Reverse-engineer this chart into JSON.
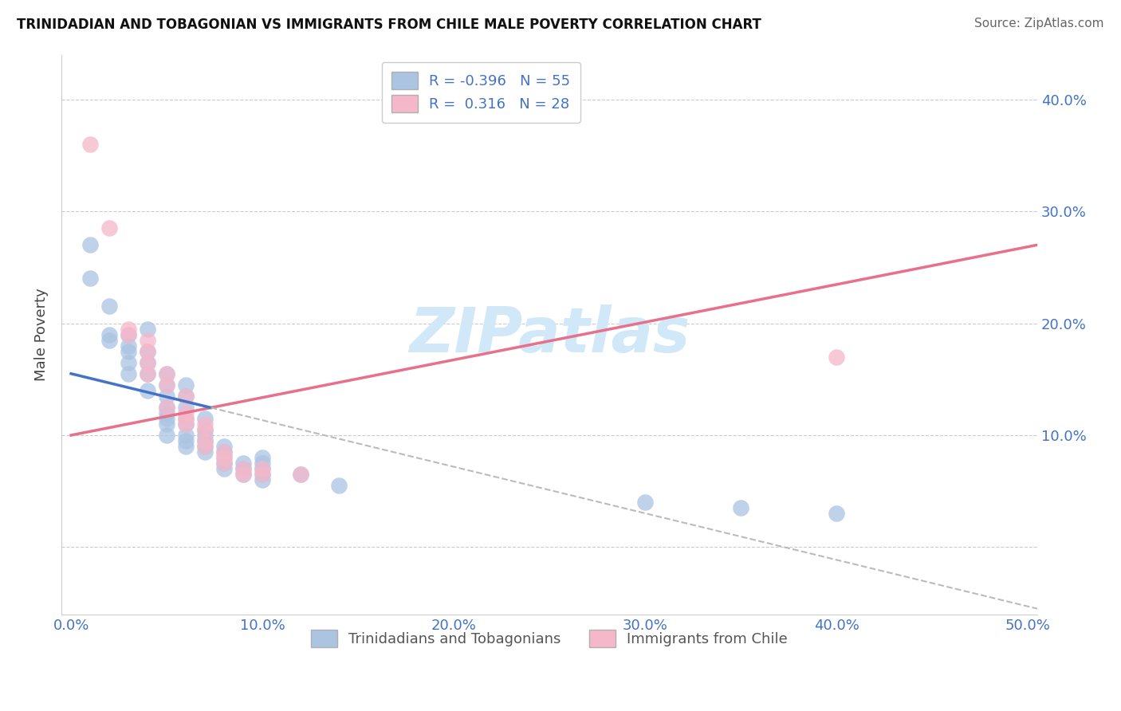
{
  "title": "TRINIDADIAN AND TOBAGONIAN VS IMMIGRANTS FROM CHILE MALE POVERTY CORRELATION CHART",
  "source": "Source: ZipAtlas.com",
  "ylabel": "Male Poverty",
  "xlim": [
    -0.005,
    0.505
  ],
  "ylim": [
    -0.06,
    0.44
  ],
  "xticks": [
    0.0,
    0.1,
    0.2,
    0.3,
    0.4,
    0.5
  ],
  "yticks": [
    0.0,
    0.1,
    0.2,
    0.3,
    0.4
  ],
  "ytick_labels_right": [
    "",
    "10.0%",
    "20.0%",
    "30.0%",
    "40.0%"
  ],
  "xtick_labels": [
    "0.0%",
    "10.0%",
    "20.0%",
    "30.0%",
    "40.0%",
    "50.0%"
  ],
  "r_blue": -0.396,
  "n_blue": 55,
  "r_pink": 0.316,
  "n_pink": 28,
  "legend_label_blue": "Trinidadians and Tobagonians",
  "legend_label_pink": "Immigrants from Chile",
  "blue_color": "#aac4e2",
  "pink_color": "#f5b8ca",
  "blue_line_color": "#4472c4",
  "pink_line_color": "#e8708a",
  "blue_scatter": [
    [
      0.01,
      0.27
    ],
    [
      0.01,
      0.24
    ],
    [
      0.02,
      0.215
    ],
    [
      0.02,
      0.19
    ],
    [
      0.02,
      0.185
    ],
    [
      0.03,
      0.19
    ],
    [
      0.03,
      0.18
    ],
    [
      0.03,
      0.175
    ],
    [
      0.03,
      0.165
    ],
    [
      0.03,
      0.155
    ],
    [
      0.04,
      0.195
    ],
    [
      0.04,
      0.175
    ],
    [
      0.04,
      0.165
    ],
    [
      0.04,
      0.155
    ],
    [
      0.04,
      0.14
    ],
    [
      0.05,
      0.155
    ],
    [
      0.05,
      0.145
    ],
    [
      0.05,
      0.135
    ],
    [
      0.05,
      0.125
    ],
    [
      0.05,
      0.12
    ],
    [
      0.05,
      0.115
    ],
    [
      0.05,
      0.11
    ],
    [
      0.05,
      0.1
    ],
    [
      0.06,
      0.145
    ],
    [
      0.06,
      0.135
    ],
    [
      0.06,
      0.125
    ],
    [
      0.06,
      0.115
    ],
    [
      0.06,
      0.11
    ],
    [
      0.06,
      0.1
    ],
    [
      0.06,
      0.095
    ],
    [
      0.06,
      0.09
    ],
    [
      0.07,
      0.115
    ],
    [
      0.07,
      0.105
    ],
    [
      0.07,
      0.1
    ],
    [
      0.07,
      0.095
    ],
    [
      0.07,
      0.09
    ],
    [
      0.07,
      0.085
    ],
    [
      0.08,
      0.09
    ],
    [
      0.08,
      0.085
    ],
    [
      0.08,
      0.08
    ],
    [
      0.08,
      0.075
    ],
    [
      0.08,
      0.07
    ],
    [
      0.09,
      0.075
    ],
    [
      0.09,
      0.07
    ],
    [
      0.09,
      0.065
    ],
    [
      0.1,
      0.08
    ],
    [
      0.1,
      0.075
    ],
    [
      0.1,
      0.07
    ],
    [
      0.1,
      0.065
    ],
    [
      0.1,
      0.06
    ],
    [
      0.12,
      0.065
    ],
    [
      0.14,
      0.055
    ],
    [
      0.3,
      0.04
    ],
    [
      0.35,
      0.035
    ],
    [
      0.4,
      0.03
    ]
  ],
  "pink_scatter": [
    [
      0.01,
      0.36
    ],
    [
      0.02,
      0.285
    ],
    [
      0.03,
      0.195
    ],
    [
      0.03,
      0.19
    ],
    [
      0.04,
      0.185
    ],
    [
      0.04,
      0.175
    ],
    [
      0.04,
      0.165
    ],
    [
      0.04,
      0.155
    ],
    [
      0.05,
      0.155
    ],
    [
      0.05,
      0.145
    ],
    [
      0.05,
      0.125
    ],
    [
      0.06,
      0.135
    ],
    [
      0.06,
      0.12
    ],
    [
      0.06,
      0.115
    ],
    [
      0.06,
      0.11
    ],
    [
      0.07,
      0.11
    ],
    [
      0.07,
      0.105
    ],
    [
      0.07,
      0.095
    ],
    [
      0.07,
      0.09
    ],
    [
      0.08,
      0.085
    ],
    [
      0.08,
      0.08
    ],
    [
      0.08,
      0.075
    ],
    [
      0.09,
      0.07
    ],
    [
      0.09,
      0.065
    ],
    [
      0.1,
      0.07
    ],
    [
      0.1,
      0.065
    ],
    [
      0.12,
      0.065
    ],
    [
      0.4,
      0.17
    ]
  ],
  "blue_line_x0": 0.0,
  "blue_line_x1": 0.505,
  "blue_line_y0": 0.155,
  "blue_line_y1": -0.055,
  "pink_line_x0": 0.0,
  "pink_line_x1": 0.505,
  "pink_line_y0": 0.1,
  "pink_line_y1": 0.27,
  "blue_dashed_color": "#bbbbbb",
  "watermark_text": "ZIPatlas",
  "watermark_color": "#d0e8f8",
  "background_color": "#ffffff",
  "grid_color": "#cccccc",
  "title_color": "#111111",
  "source_color": "#666666",
  "tick_color": "#4472c4",
  "ylabel_color": "#444444"
}
